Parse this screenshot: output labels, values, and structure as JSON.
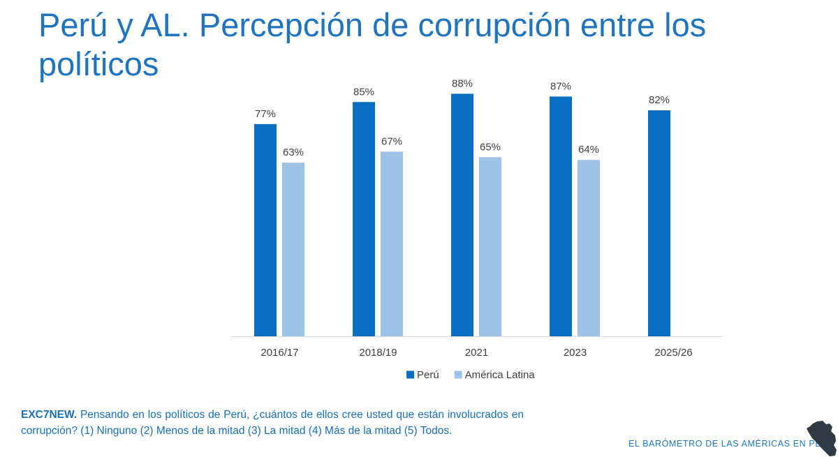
{
  "title": "Perú y AL. Percepción de corrupción entre los políticos",
  "chart_data": {
    "type": "bar",
    "categories": [
      "2016/17",
      "2018/19",
      "2021",
      "2023",
      "2025/26"
    ],
    "series": [
      {
        "name": "Perú",
        "values": [
          77,
          85,
          88,
          87,
          82
        ],
        "labels": [
          "77%",
          "85%",
          "88%",
          "87%",
          "82%"
        ],
        "color": "#0a6fc2"
      },
      {
        "name": "América Latina",
        "values": [
          63,
          67,
          65,
          64,
          null
        ],
        "labels": [
          "63%",
          "67%",
          "65%",
          "64%",
          ""
        ],
        "color": "#9dc3e6"
      }
    ],
    "ylim": [
      0,
      100
    ],
    "grid": false,
    "legend_position": "bottom"
  },
  "question": {
    "code": "EXC7NEW.",
    "text": " Pensando en los políticos de Perú, ¿cuántos de ellos cree usted que están involucrados en corrupción? (1) Ninguno  (2) Menos de la mitad  (3) La mitad  (4) Más de la mitad (5) Todos."
  },
  "footer": {
    "brand": "EL  BARÓMETRO DE LAS AMÉRICAS  EN PERÚ",
    "logo_icon": "peru-map-icon",
    "logo_color": "#2f3a44"
  }
}
